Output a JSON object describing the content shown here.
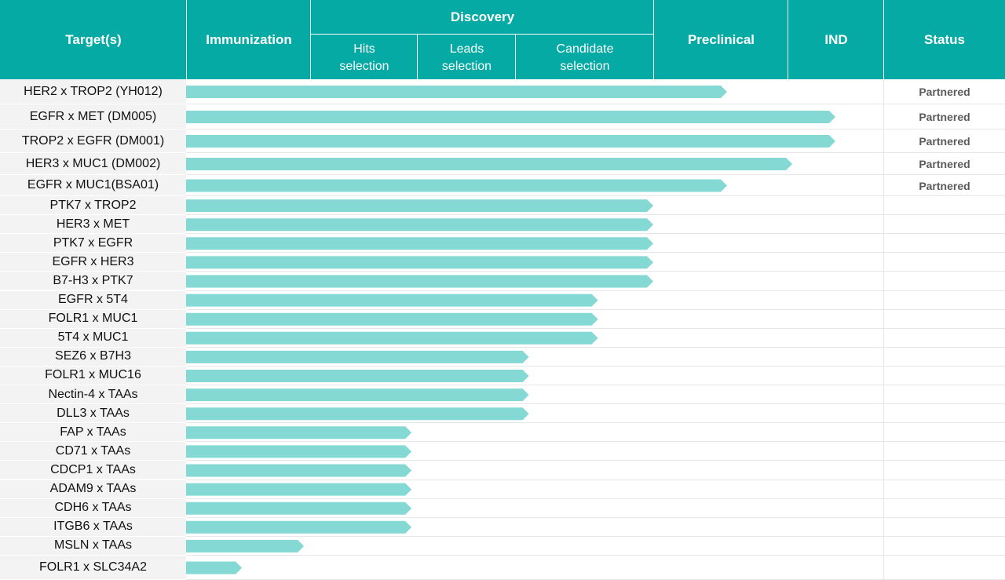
{
  "header": {
    "targets": "Target(s)",
    "immunization": "Immunization",
    "discovery": "Discovery",
    "hits": "Hits\nselection",
    "leads": "Leads\nselection",
    "candidate": "Candidate\nselection",
    "preclinical": "Preclinical",
    "ind": "IND",
    "status": "Status"
  },
  "colors": {
    "header": "#05aaa5",
    "bar": "#85d9d5",
    "target_bg": "#f3f3f3",
    "status_text": "#5b5b5b"
  },
  "chart_data": {
    "type": "bar",
    "orientation": "horizontal",
    "stage_axis": [
      "Immunization",
      "Hits selection",
      "Leads selection",
      "Candidate selection",
      "Preclinical",
      "IND"
    ],
    "value_note": "stage reached: 0 = start of Immunization, 1 = end of Immunization, 2 = end of Hits selection, 3 = end of Leads selection, 4 = end of Candidate selection, 5 = end of Preclinical, 6 = end of IND",
    "rows": [
      {
        "target": "HER2 x TROP2 (YH012)",
        "progress": 4.55,
        "status": "Partnered"
      },
      {
        "target": "EGFR x MET (DM005)",
        "progress": 5.5,
        "status": "Partnered"
      },
      {
        "target": "TROP2 x EGFR (DM001)",
        "progress": 5.5,
        "status": "Partnered"
      },
      {
        "target": "HER3 x MUC1 (DM002)",
        "progress": 5.05,
        "status": "Partnered"
      },
      {
        "target": "EGFR x MUC1(BSA01)",
        "progress": 4.55,
        "status": "Partnered"
      },
      {
        "target": "PTK7 x TROP2",
        "progress": 4.0,
        "status": ""
      },
      {
        "target": "HER3 x MET",
        "progress": 4.0,
        "status": ""
      },
      {
        "target": "PTK7 x EGFR",
        "progress": 4.0,
        "status": ""
      },
      {
        "target": "EGFR x HER3",
        "progress": 4.0,
        "status": ""
      },
      {
        "target": "B7-H3 x PTK7",
        "progress": 4.0,
        "status": ""
      },
      {
        "target": "EGFR x 5T4",
        "progress": 3.6,
        "status": ""
      },
      {
        "target": "FOLR1 x MUC1",
        "progress": 3.6,
        "status": ""
      },
      {
        "target": "5T4 x MUC1",
        "progress": 3.6,
        "status": ""
      },
      {
        "target": "SEZ6 x B7H3",
        "progress": 3.1,
        "status": ""
      },
      {
        "target": "FOLR1 x MUC16",
        "progress": 3.1,
        "status": ""
      },
      {
        "target": "Nectin-4 x TAAs",
        "progress": 3.1,
        "status": ""
      },
      {
        "target": "DLL3 x TAAs",
        "progress": 3.1,
        "status": ""
      },
      {
        "target": "FAP x TAAs",
        "progress": 1.95,
        "status": ""
      },
      {
        "target": "CD71 x TAAs",
        "progress": 1.95,
        "status": ""
      },
      {
        "target": "CDCP1 x TAAs",
        "progress": 1.95,
        "status": ""
      },
      {
        "target": "ADAM9 x TAAs",
        "progress": 1.95,
        "status": ""
      },
      {
        "target": "CDH6 x  TAAs",
        "progress": 1.95,
        "status": ""
      },
      {
        "target": "ITGB6 x TAAs",
        "progress": 1.95,
        "status": ""
      },
      {
        "target": "MSLN x TAAs",
        "progress": 0.95,
        "status": ""
      },
      {
        "target": "FOLR1 x SLC34A2",
        "progress": 0.45,
        "status": ""
      }
    ]
  }
}
